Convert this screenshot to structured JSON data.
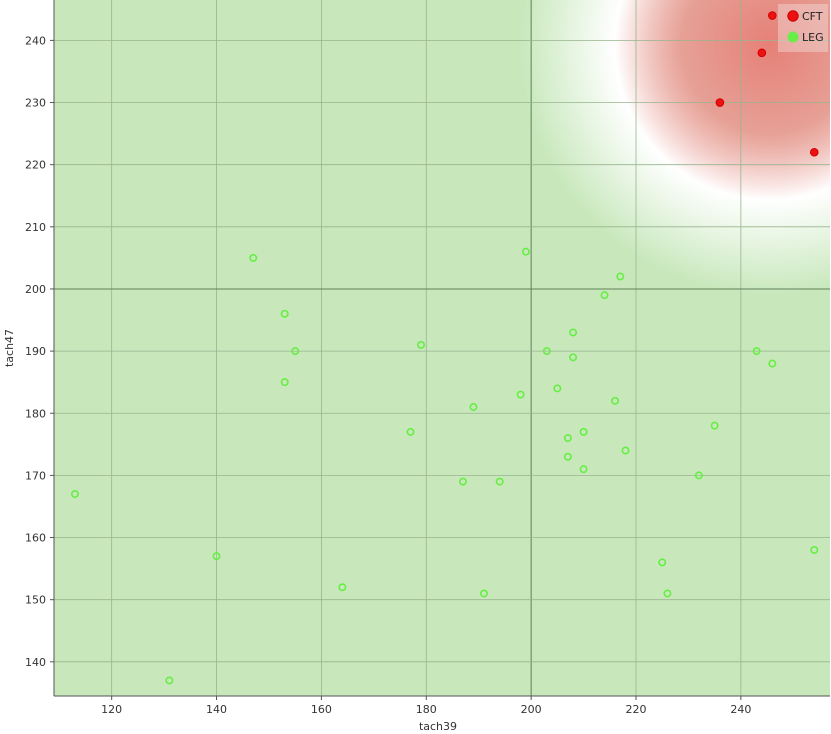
{
  "chart_data": {
    "type": "scatter",
    "xlabel": "tach39",
    "ylabel": "tach47",
    "xlim": [
      109,
      257
    ],
    "ylim": [
      134.5,
      246.5
    ],
    "xticks": [
      120,
      140,
      160,
      180,
      200,
      220,
      240
    ],
    "yticks": [
      140,
      150,
      160,
      170,
      180,
      190,
      200,
      210,
      220,
      230,
      240
    ],
    "major_lines": {
      "x": 200,
      "y": 200
    },
    "grid": true,
    "legend_position": "top-right",
    "background_color": "#c8e8bc",
    "series": [
      {
        "name": "CFT",
        "color": "#ee1111",
        "points": [
          [
            246,
            244
          ],
          [
            244,
            238
          ],
          [
            236,
            230
          ],
          [
            254,
            222
          ]
        ]
      },
      {
        "name": "LEG",
        "color": "#66ee44",
        "points": [
          [
            113,
            167
          ],
          [
            131,
            137
          ],
          [
            140,
            157
          ],
          [
            147,
            205
          ],
          [
            153,
            196
          ],
          [
            153,
            185
          ],
          [
            155,
            190
          ],
          [
            164,
            152
          ],
          [
            177,
            177
          ],
          [
            179,
            191
          ],
          [
            187,
            169
          ],
          [
            189,
            181
          ],
          [
            191,
            151
          ],
          [
            194,
            169
          ],
          [
            198,
            183
          ],
          [
            199,
            206
          ],
          [
            203,
            190
          ],
          [
            205,
            184
          ],
          [
            207,
            176
          ],
          [
            207,
            173
          ],
          [
            208,
            193
          ],
          [
            208,
            189
          ],
          [
            210,
            177
          ],
          [
            210,
            171
          ],
          [
            214,
            199
          ],
          [
            216,
            182
          ],
          [
            217,
            202
          ],
          [
            218,
            174
          ],
          [
            225,
            156
          ],
          [
            226,
            151
          ],
          [
            232,
            170
          ],
          [
            235,
            178
          ],
          [
            243,
            190
          ],
          [
            246,
            188
          ],
          [
            254,
            158
          ]
        ]
      }
    ]
  }
}
